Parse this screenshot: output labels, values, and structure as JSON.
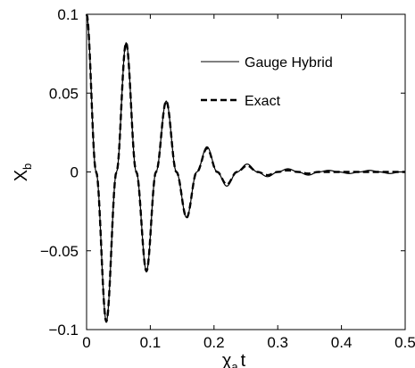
{
  "chart_data": {
    "type": "line",
    "title": "",
    "xlabel": "χ",
    "xlabel_subscript": "a",
    "xlabel_suffix": "t",
    "ylabel": "X",
    "ylabel_subscript": "b",
    "xlim": [
      0,
      0.5
    ],
    "ylim": [
      -0.1,
      0.1
    ],
    "xticks": [
      0,
      0.1,
      0.2,
      0.3,
      0.4,
      0.5
    ],
    "xtick_labels": [
      "0",
      "0.1",
      "0.2",
      "0.3",
      "0.4",
      "0.5"
    ],
    "yticks": [
      -0.1,
      -0.05,
      0,
      0.05,
      0.1
    ],
    "ytick_labels": [
      "−0.1",
      "−0.05",
      "0",
      "0.05",
      "0.1"
    ],
    "grid": false,
    "legend_position": "top-right",
    "series": [
      {
        "name": "Gauge Hybrid",
        "style": "solid",
        "color": "#000000",
        "x": [
          0,
          0.015,
          0.031,
          0.047,
          0.062,
          0.078,
          0.094,
          0.109,
          0.125,
          0.141,
          0.157,
          0.173,
          0.189,
          0.205,
          0.22,
          0.236,
          0.252,
          0.268,
          0.284,
          0.3,
          0.316,
          0.332,
          0.348,
          0.364,
          0.38,
          0.396,
          0.412,
          0.428,
          0.444,
          0.46,
          0.476,
          0.492,
          0.5
        ],
        "y": [
          0.1,
          0.0,
          -0.095,
          0.0,
          0.082,
          0.0,
          -0.063,
          0.0,
          0.045,
          0.0,
          -0.029,
          0.0,
          0.016,
          0.0,
          -0.009,
          0.0,
          0.005,
          0.0,
          -0.003,
          0.0,
          0.002,
          0.0,
          -0.002,
          0.0,
          0.001,
          0.0,
          -0.001,
          0.0,
          0.001,
          0.0,
          -0.001,
          0.0,
          0.0
        ]
      },
      {
        "name": "Exact",
        "style": "dashed",
        "color": "#000000",
        "x": [
          0,
          0.015,
          0.031,
          0.047,
          0.062,
          0.078,
          0.094,
          0.109,
          0.125,
          0.141,
          0.157,
          0.173,
          0.189,
          0.205,
          0.22,
          0.236,
          0.252,
          0.268,
          0.284,
          0.3,
          0.316,
          0.332,
          0.348,
          0.364,
          0.38,
          0.396,
          0.412,
          0.428,
          0.444,
          0.46,
          0.476,
          0.492,
          0.5
        ],
        "y": [
          0.1,
          0.0,
          -0.095,
          0.0,
          0.082,
          0.0,
          -0.063,
          0.0,
          0.045,
          0.0,
          -0.029,
          0.0,
          0.015,
          0.0,
          -0.008,
          0.0,
          0.004,
          0.0,
          -0.002,
          0.0,
          0.001,
          0.0,
          -0.001,
          0.0,
          0.0,
          0.0,
          0.0,
          0.0,
          0.0,
          0.0,
          0.0,
          0.0,
          0.0
        ]
      }
    ]
  }
}
